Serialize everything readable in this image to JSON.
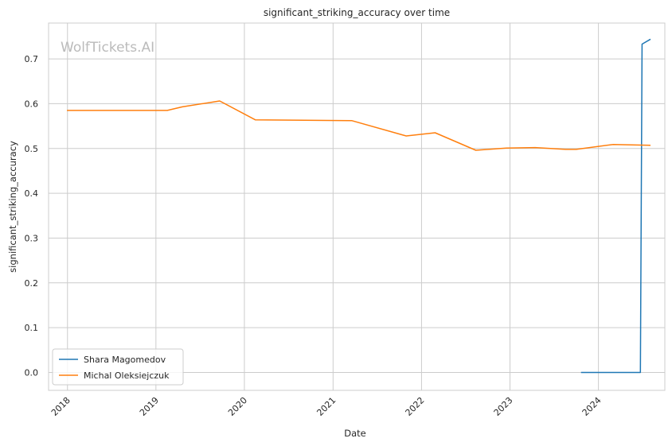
{
  "chart_data": {
    "type": "line",
    "title": "significant_striking_accuracy over time",
    "xlabel": "Date",
    "ylabel": "significant_striking_accuracy",
    "watermark": "WolfTickets.AI",
    "x_ticks": [
      "2018",
      "2019",
      "2020",
      "2021",
      "2022",
      "2023",
      "2024"
    ],
    "y_ticks": [
      "0.0",
      "0.1",
      "0.2",
      "0.3",
      "0.4",
      "0.5",
      "0.6",
      "0.7"
    ],
    "ylim": [
      -0.04,
      0.78
    ],
    "xlim": [
      "2017-10-15",
      "2024-10-01"
    ],
    "grid": true,
    "legend_position": "lower-left",
    "series": [
      {
        "name": "Shara Magomedov",
        "color": "#1f77b4",
        "points": [
          {
            "x": "2023-10-21",
            "y": 0.0
          },
          {
            "x": "2024-06-22",
            "y": 0.0
          },
          {
            "x": "2024-06-29",
            "y": 0.733
          },
          {
            "x": "2024-08-03",
            "y": 0.744
          }
        ]
      },
      {
        "name": "Michal Oleksiejczuk",
        "color": "#ff7f0e",
        "points": [
          {
            "x": "2017-12-30",
            "y": 0.585
          },
          {
            "x": "2019-02-17",
            "y": 0.585
          },
          {
            "x": "2019-04-20",
            "y": 0.593
          },
          {
            "x": "2019-09-21",
            "y": 0.606
          },
          {
            "x": "2020-02-15",
            "y": 0.564
          },
          {
            "x": "2021-03-20",
            "y": 0.562
          },
          {
            "x": "2021-10-30",
            "y": 0.528
          },
          {
            "x": "2022-02-26",
            "y": 0.535
          },
          {
            "x": "2022-08-13",
            "y": 0.496
          },
          {
            "x": "2022-12-17",
            "y": 0.501
          },
          {
            "x": "2023-04-15",
            "y": 0.502
          },
          {
            "x": "2023-08-19",
            "y": 0.498
          },
          {
            "x": "2023-10-01",
            "y": 0.498
          },
          {
            "x": "2024-03-02",
            "y": 0.509
          },
          {
            "x": "2024-08-03",
            "y": 0.507
          }
        ]
      }
    ]
  }
}
